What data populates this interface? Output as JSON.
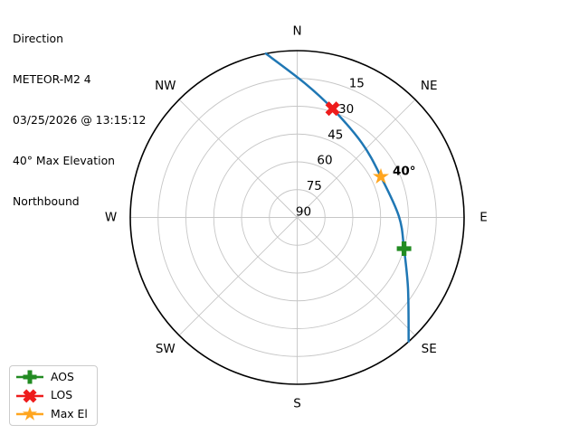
{
  "header": {
    "lines": [
      "Direction",
      "METEOR-M2 4",
      "03/25/2026 @ 13:15:12",
      "40° Max Elevation",
      "Northbound"
    ]
  },
  "legend": {
    "items": [
      {
        "label": "AOS",
        "shape": "plus",
        "color": "#228b22"
      },
      {
        "label": "LOS",
        "shape": "x",
        "color": "#ee1c1c"
      },
      {
        "label": "Max El",
        "shape": "star",
        "color": "#ffa51e"
      }
    ]
  },
  "chart_data": {
    "type": "polar_sky_track",
    "compass_labels": [
      "N",
      "NE",
      "E",
      "SE",
      "S",
      "SW",
      "W",
      "NW"
    ],
    "elevation_tick_labels": [
      15,
      30,
      45,
      60,
      75,
      90
    ],
    "elevation_range": [
      0,
      90
    ],
    "radial_label_angle_deg": 22.5,
    "grid": true,
    "track": {
      "color": "#1f77b4",
      "points_az_el": [
        [
          349.2,
          0
        ],
        [
          3.2,
          17.4
        ],
        [
          18,
          28.3
        ],
        [
          41,
          36.8
        ],
        [
          64,
          39.8
        ],
        [
          89.5,
          35.1
        ],
        [
          106.3,
          30
        ],
        [
          122.7,
          19
        ],
        [
          138.1,
          0
        ]
      ]
    },
    "markers": [
      {
        "label": "AOS",
        "shape": "plus",
        "color": "#228b22",
        "az": 106.3,
        "el": 30
      },
      {
        "label": "LOS",
        "shape": "x",
        "color": "#ee1c1c",
        "az": 18,
        "el": 28.3
      },
      {
        "label": "Max El",
        "shape": "star",
        "color": "#ffa51e",
        "az": 64,
        "el": 39.8
      }
    ],
    "annotation": {
      "text": "40°",
      "az": 64,
      "el": 39.8
    },
    "style": {
      "grid_color": "#c6c6c6",
      "outline_color": "#000000",
      "text_color": "#000000",
      "background": "#ffffff"
    }
  }
}
